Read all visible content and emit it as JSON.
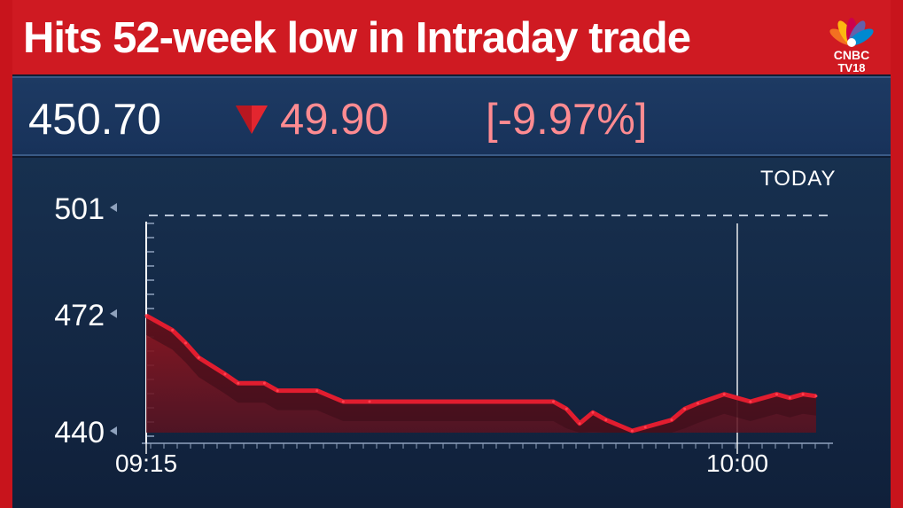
{
  "headline": "Hits 52-week low in Intraday trade",
  "logo": {
    "line1": "CNBC",
    "line2": "TV18"
  },
  "quote": {
    "price": "450.70",
    "change": "49.90",
    "change_pct": "[-9.97%]",
    "direction": "down"
  },
  "period_label": "TODAY",
  "colors": {
    "frame_red": "#c8141c",
    "down_color": "#ff8b91",
    "line_red": "#e11d2f",
    "background": "#0f1d33"
  },
  "chart_data": {
    "type": "area",
    "y_ticks": [
      501,
      472,
      440
    ],
    "x_ticks": [
      "09:15",
      "10:00"
    ],
    "ylim": [
      440,
      501
    ],
    "reference_line": {
      "value": 501
    },
    "series": [
      {
        "x": [
          "09:15",
          "09:17",
          "09:18",
          "09:19",
          "09:21",
          "09:22",
          "09:24",
          "09:25",
          "09:28",
          "09:30",
          "09:32",
          "09:46",
          "09:47",
          "09:48",
          "09:49",
          "09:50",
          "09:52",
          "09:53",
          "09:55",
          "09:56",
          "09:57",
          "09:59",
          "10:01",
          "10:03",
          "10:04",
          "10:05",
          "10:06"
        ],
        "values": [
          471.5,
          467.5,
          464,
          460,
          455.5,
          453,
          453,
          451,
          451,
          448,
          448,
          448,
          446,
          442,
          445,
          443,
          440,
          441,
          443,
          446,
          447.5,
          450,
          448,
          450,
          449,
          450,
          449.5
        ]
      }
    ]
  }
}
